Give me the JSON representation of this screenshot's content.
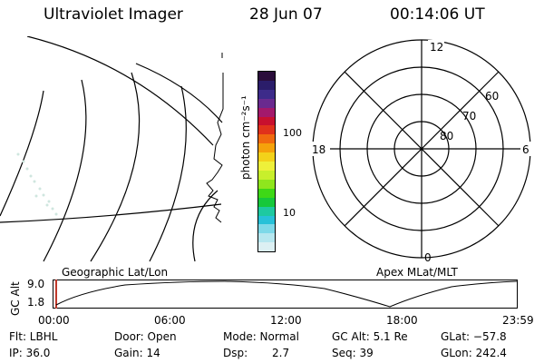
{
  "header": {
    "title": "Ultraviolet Imager",
    "date": "28 Jun 07",
    "time": "00:14:06 UT"
  },
  "colorbar": {
    "unit_label": "photon cm⁻²s⁻¹",
    "ticks": [
      "100",
      "10"
    ],
    "colors": [
      "#2a0d3a",
      "#2b1d6a",
      "#3d2b8a",
      "#6a2a8f",
      "#a3196b",
      "#c8102e",
      "#e0321b",
      "#f06a0f",
      "#f5a20b",
      "#f3d21a",
      "#eef03a",
      "#c8ef2c",
      "#8fe61d",
      "#3ed816",
      "#16c83b",
      "#1ec9a0",
      "#27c1d8",
      "#7ed9e8",
      "#b6e7ef",
      "#dcf0f3"
    ]
  },
  "polar": {
    "labels": {
      "top": "12",
      "left": "18",
      "right": "6",
      "bottom": "0"
    },
    "rings": [
      "60",
      "70",
      "80"
    ]
  },
  "timeline": {
    "y_axis": "GC Alt",
    "y_ticks": [
      "9.0",
      "1.8"
    ],
    "left_label": "Geographic Lat/Lon",
    "right_label": "Apex MLat/MLT",
    "x_ticks": [
      "00:00",
      "06:00",
      "12:00",
      "18:00",
      "23:59"
    ]
  },
  "footer": {
    "filter": "Flt: LBHL",
    "ip": "IP: 36.0",
    "door": "Door: Open",
    "gain": "Gain: 14",
    "mode": "Mode: Normal",
    "dsp_label": "Dsp:",
    "dsp_value": "2.7",
    "gc_alt": "GC Alt: 5.1 Re",
    "seq": "Seq: 39",
    "glat": "GLat: −57.8",
    "glon": "GLon: 242.4"
  }
}
